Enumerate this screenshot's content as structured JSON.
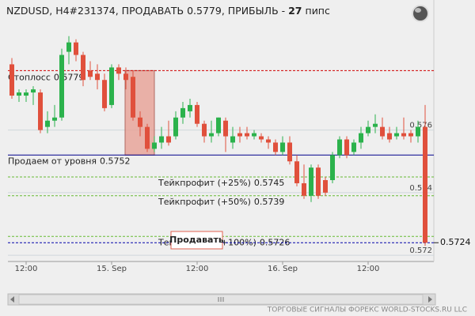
{
  "chart_data": {
    "type": "candlestick",
    "title_prefix": "NZDUSD, H4#231374, ПРОДАВАТЬ 0.5779, ПРИБЫЛЬ - ",
    "profit": 27,
    "title_suffix": "пипс",
    "categories": [
      null,
      null,
      "12:00",
      null,
      null,
      null,
      null,
      null,
      null,
      null,
      null,
      null,
      null,
      null,
      "15. Sep",
      null,
      null,
      null,
      null,
      null,
      null,
      null,
      null,
      null,
      null,
      null,
      "12:00",
      null,
      null,
      null,
      null,
      null,
      null,
      null,
      null,
      null,
      null,
      null,
      "16. Sep",
      null,
      null,
      null,
      null,
      null,
      null,
      null,
      null,
      null,
      null,
      null,
      "12:00",
      null,
      null,
      null,
      null,
      null,
      null,
      null,
      null
    ],
    "open": [
      0.5781,
      0.5771,
      0.5771,
      0.5772,
      0.5772,
      0.5761,
      0.5763,
      0.5764,
      0.5785,
      0.5788,
      0.5784,
      0.5779,
      0.5778,
      0.5776,
      0.5768,
      0.578,
      0.5778,
      0.5777,
      0.5764,
      0.5761,
      0.5754,
      0.5756,
      0.5758,
      0.5758,
      0.5764,
      0.5766,
      0.5768,
      0.5762,
      0.5758,
      0.5759,
      0.5763,
      0.5756,
      0.5759,
      0.5759,
      0.5758,
      0.5758,
      0.5757,
      0.5756,
      0.5753,
      0.5756,
      0.575,
      0.5743,
      0.5739,
      0.5748,
      0.5744,
      0.5744,
      0.5752,
      0.5757,
      0.5753,
      0.5756,
      0.5759,
      0.5761,
      0.5761,
      0.5759,
      0.5758,
      0.5759,
      0.5759,
      0.5758,
      0.5761
    ],
    "high": [
      0.5783,
      0.5773,
      0.5773,
      0.5774,
      0.5773,
      0.5766,
      0.5768,
      0.5786,
      0.579,
      0.5789,
      0.5785,
      0.5782,
      0.5781,
      0.5778,
      0.5781,
      0.5781,
      0.578,
      0.5779,
      0.5766,
      0.5762,
      0.5758,
      0.5761,
      0.5763,
      0.5766,
      0.5769,
      0.577,
      0.5769,
      0.5763,
      0.5763,
      0.5764,
      0.5764,
      0.5761,
      0.5761,
      0.5761,
      0.576,
      0.5759,
      0.5758,
      0.5757,
      0.5758,
      0.5758,
      0.5752,
      0.5749,
      0.5749,
      0.5749,
      0.5745,
      0.5753,
      0.5758,
      0.5758,
      0.5757,
      0.5761,
      0.5763,
      0.5765,
      0.5764,
      0.5761,
      0.5761,
      0.5764,
      0.576,
      0.5763,
      0.5768
    ],
    "low": [
      0.577,
      0.5769,
      0.5769,
      0.5768,
      0.5759,
      0.5759,
      0.5761,
      0.5763,
      0.5781,
      0.5782,
      0.5774,
      0.5776,
      0.5773,
      0.5766,
      0.5767,
      0.5776,
      0.5773,
      0.5763,
      0.5758,
      0.5753,
      0.5753,
      0.5754,
      0.5755,
      0.5757,
      0.5762,
      0.5764,
      0.5761,
      0.5756,
      0.5756,
      0.5758,
      0.5753,
      0.5754,
      0.5756,
      0.5757,
      0.5757,
      0.5756,
      0.5754,
      0.5752,
      0.5752,
      0.5749,
      0.5742,
      0.5738,
      0.5737,
      0.5738,
      0.5739,
      0.5743,
      0.5751,
      0.5751,
      0.5752,
      0.5754,
      0.5758,
      0.5759,
      0.5757,
      0.5756,
      0.5757,
      0.5757,
      0.5756,
      0.5756,
      0.5723
    ],
    "close": [
      0.5771,
      0.5772,
      0.5772,
      0.5773,
      0.576,
      0.5763,
      0.5764,
      0.5784,
      0.5788,
      0.5784,
      0.5776,
      0.5777,
      0.5776,
      0.5767,
      0.578,
      0.5778,
      0.5776,
      0.5764,
      0.5761,
      0.5754,
      0.5756,
      0.5758,
      0.5756,
      0.5764,
      0.5767,
      0.5768,
      0.5762,
      0.5758,
      0.5759,
      0.5764,
      0.5758,
      0.5758,
      0.5758,
      0.5758,
      0.5759,
      0.5757,
      0.5756,
      0.5753,
      0.5756,
      0.575,
      0.5743,
      0.5739,
      0.5748,
      0.5739,
      0.574,
      0.5752,
      0.5757,
      0.5752,
      0.5756,
      0.5759,
      0.5761,
      0.5762,
      0.5758,
      0.5757,
      0.5759,
      0.5758,
      0.5758,
      0.5761,
      0.5724
    ],
    "up_color": "#2bb24c",
    "down_color": "#e0503c",
    "ylim": [
      0.5718,
      0.5796
    ],
    "yticks": [
      0.572,
      0.574,
      0.576
    ],
    "grid": true,
    "levels": [
      {
        "label": "Стоплосс",
        "value": 0.5779,
        "color": "#d00000",
        "dashed": true
      },
      {
        "label": "Продаем от уровня",
        "value": 0.5752,
        "color": "#00008b",
        "dashed": false
      },
      {
        "label": "Тейкпрофит (+25%)",
        "value": 0.5745,
        "color": "#66bb33",
        "dashed": true
      },
      {
        "label": "Тейкпрофит (+50%)",
        "value": 0.5739,
        "color": "#66bb33",
        "dashed": true
      },
      {
        "label": "Тейкпрофит (+100%)",
        "value": 0.5726,
        "color": "#66bb33",
        "dashed": true
      }
    ],
    "current_price": 0.5724,
    "button": "Продавать",
    "footer": "ТОРГОВЫЕ СИГНАЛЫ ФОРЕКС WORLD-STOCKS.RU LLC"
  }
}
